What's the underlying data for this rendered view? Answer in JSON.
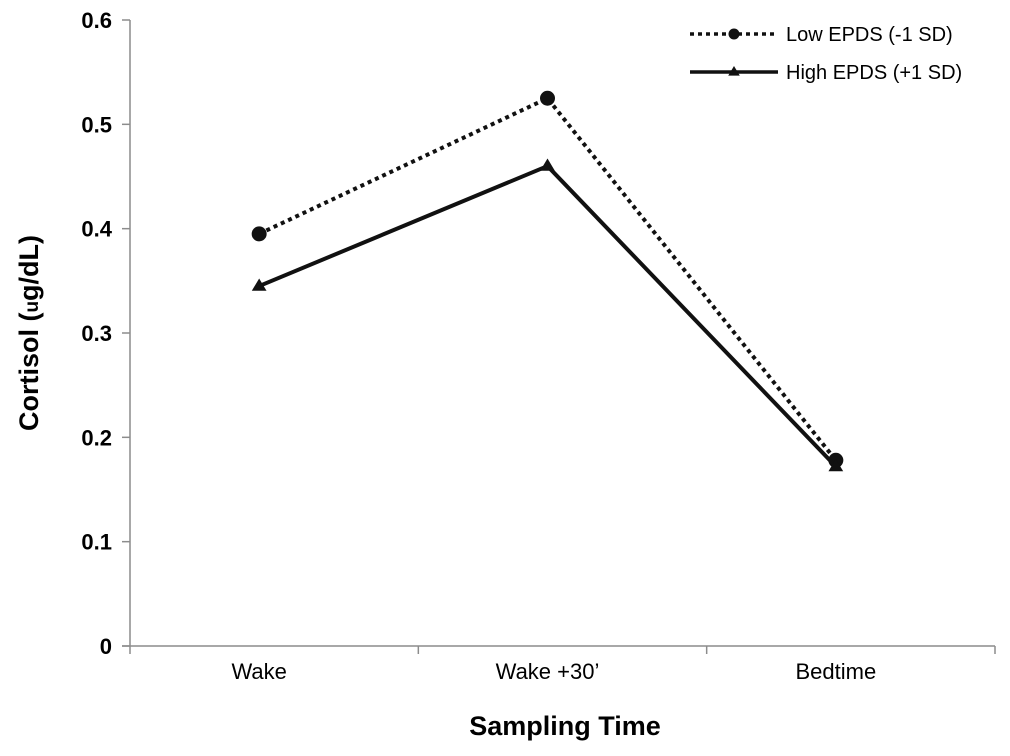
{
  "chart_data": {
    "type": "line",
    "title": "",
    "xlabel": "Sampling Time",
    "ylabel": "Cortisol (ug/dL)",
    "ylabel_parts": {
      "before": "Cortisol (",
      "unit_small": "u",
      "after": "g/dL)"
    },
    "categories": [
      "Wake",
      "Wake +30’",
      "Bedtime"
    ],
    "ylim": [
      0,
      0.6
    ],
    "yticks": [
      "0",
      "0.1",
      "0.2",
      "0.3",
      "0.4",
      "0.5",
      "0.6"
    ],
    "ytick_values": [
      0,
      0.1,
      0.2,
      0.3,
      0.4,
      0.5,
      0.6
    ],
    "grid": false,
    "legend_position": "top-right",
    "series": [
      {
        "name": "Low EPDS (-1 SD)",
        "values": [
          0.395,
          0.525,
          0.178
        ],
        "line_style": "dotted",
        "marker": "circle",
        "color": "#111111"
      },
      {
        "name": "High EPDS (+1 SD)",
        "values": [
          0.345,
          0.46,
          0.172
        ],
        "line_style": "solid",
        "marker": "triangle",
        "color": "#111111"
      }
    ]
  }
}
